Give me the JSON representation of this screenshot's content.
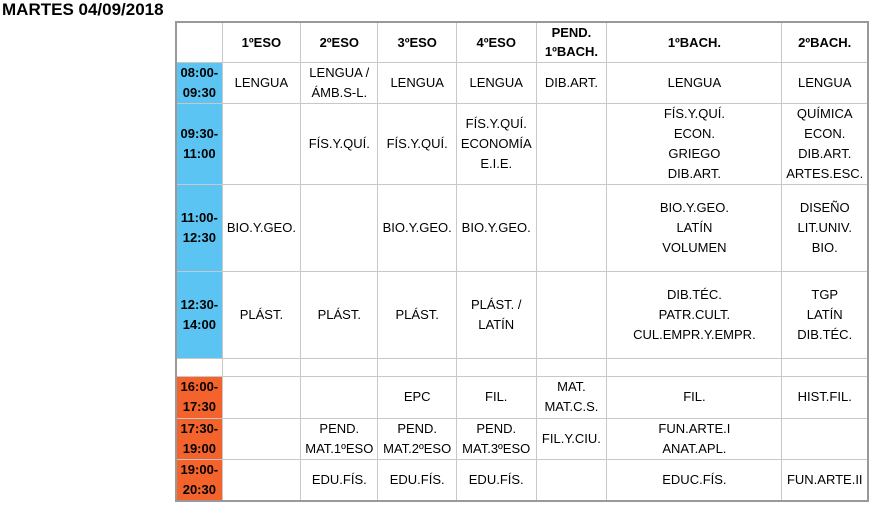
{
  "title": "MARTES 04/09/2018",
  "columns": [
    "",
    "1ºESO",
    "2ºESO",
    "3ºESO",
    "4ºESO",
    "PEND.\n1ºBACH.",
    "1ºBACH.",
    "2ºBACH."
  ],
  "rows": [
    {
      "time": "08:00-\n09:30",
      "period": "morning",
      "cells": [
        [
          "LENGUA"
        ],
        [
          "LENGUA /",
          "ÁMB.S-L."
        ],
        [
          "LENGUA"
        ],
        [
          "LENGUA"
        ],
        [
          "DIB.ART."
        ],
        [
          "LENGUA"
        ],
        [
          "LENGUA"
        ]
      ]
    },
    {
      "time": "09:30-\n11:00",
      "period": "morning",
      "cells": [
        [],
        [
          "FÍS.Y.QUÍ."
        ],
        [
          "FÍS.Y.QUÍ."
        ],
        [
          "FÍS.Y.QUÍ.",
          "ECONOMÍA",
          "E.I.E."
        ],
        [],
        [
          "FÍS.Y.QUÍ.",
          "ECON.",
          "GRIEGO",
          "DIB.ART."
        ],
        [
          "QUÍMICA",
          "ECON.",
          "DIB.ART.",
          "ARTES.ESC."
        ]
      ]
    },
    {
      "time": "11:00-\n12:30",
      "period": "morning",
      "cells": [
        [
          "BIO.Y.GEO."
        ],
        [],
        [
          "BIO.Y.GEO."
        ],
        [
          "BIO.Y.GEO."
        ],
        [],
        [
          "BIO.Y.GEO.",
          "LATÍN",
          "VOLUMEN"
        ],
        [
          "DISEÑO",
          "LIT.UNIV.",
          "BIO."
        ]
      ]
    },
    {
      "time": "12:30-\n14:00",
      "period": "morning",
      "cells": [
        [
          "PLÁST."
        ],
        [
          "PLÁST."
        ],
        [
          "PLÁST."
        ],
        [
          "PLÁST. /",
          "LATÍN"
        ],
        [],
        [
          "DIB.TÉC.",
          "PATR.CULT.",
          "CUL.EMPR.Y.EMPR."
        ],
        [
          "TGP",
          "LATÍN",
          "DIB.TÉC."
        ]
      ]
    },
    {
      "time": "",
      "period": "blank",
      "cells": [
        [],
        [],
        [],
        [],
        [],
        [],
        []
      ]
    },
    {
      "time": "16:00-\n17:30",
      "period": "afternoon",
      "cells": [
        [],
        [],
        [
          "EPC"
        ],
        [
          "FIL."
        ],
        [
          "MAT.",
          "MAT.C.S."
        ],
        [
          "FIL."
        ],
        [
          "HIST.FIL."
        ]
      ]
    },
    {
      "time": "17:30-\n19:00",
      "period": "afternoon",
      "cells": [
        [],
        [
          "PEND.",
          "MAT.1ºESO"
        ],
        [
          "PEND.",
          "MAT.2ºESO"
        ],
        [
          "PEND.",
          "MAT.3ºESO"
        ],
        [
          "FIL.Y.CIU."
        ],
        [
          "FUN.ARTE.I",
          "ANAT.APL."
        ],
        []
      ]
    },
    {
      "time": "19:00-\n20:30",
      "period": "afternoon",
      "cells": [
        [],
        [
          "EDU.FÍS."
        ],
        [
          "EDU.FÍS."
        ],
        [
          "EDU.FÍS."
        ],
        [],
        [
          "EDUC.FÍS."
        ],
        [
          "FUN.ARTE.II"
        ]
      ]
    }
  ],
  "colors": {
    "morning": "#5bc4f2",
    "afternoon": "#f4632c",
    "border": "#c8c8c8"
  }
}
